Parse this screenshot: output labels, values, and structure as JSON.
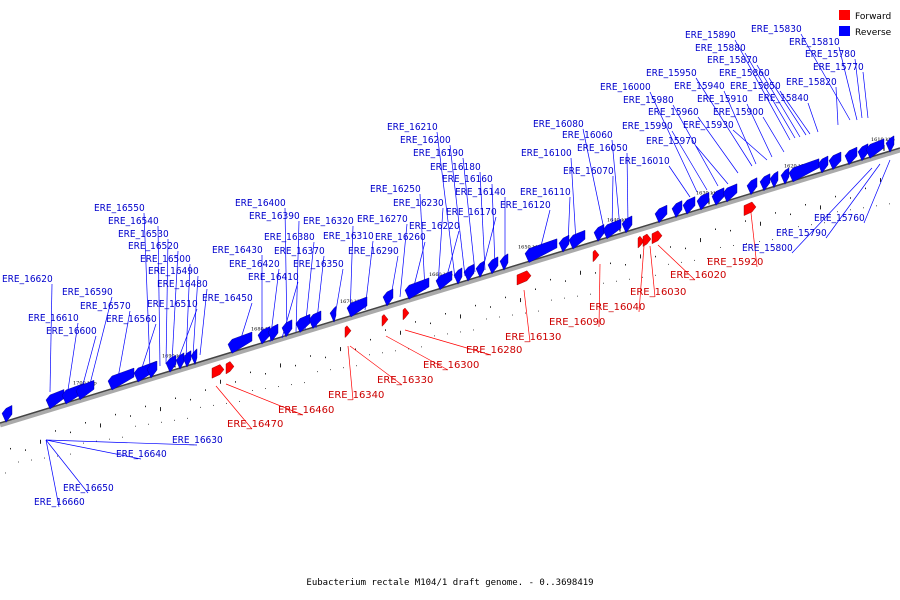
{
  "caption": "Eubacterium rectale M104/1 draft genome. - 0..3698419",
  "legend": [
    {
      "label": "Forward",
      "color": "#ff0000"
    },
    {
      "label": "Reverse",
      "color": "#0000ff"
    }
  ],
  "tick_labels": [
    "1610 kbp",
    "1620 kbp",
    "1630 kbp",
    "1640 kbp",
    "1650 kbp",
    "1660 kbp",
    "1670 kbp",
    "1680 kbp",
    "1690 kbp",
    "1700 kbp"
  ],
  "reverse_genes": [
    "ERE_15760",
    "ERE_15770",
    "ERE_15780",
    "ERE_15790",
    "ERE_15800",
    "ERE_15810",
    "ERE_15820",
    "ERE_15830",
    "ERE_15840",
    "ERE_15850",
    "ERE_15860",
    "ERE_15870",
    "ERE_15880",
    "ERE_15890",
    "ERE_15900",
    "ERE_15910",
    "ERE_15930",
    "ERE_15940",
    "ERE_15950",
    "ERE_15960",
    "ERE_15970",
    "ERE_15980",
    "ERE_15990",
    "ERE_16000",
    "ERE_16010",
    "ERE_16050",
    "ERE_16060",
    "ERE_16070",
    "ERE_16080",
    "ERE_16100",
    "ERE_16110",
    "ERE_16120",
    "ERE_16140",
    "ERE_16160",
    "ERE_16170",
    "ERE_16180",
    "ERE_16190",
    "ERE_16200",
    "ERE_16210",
    "ERE_16220",
    "ERE_16230",
    "ERE_16250",
    "ERE_16260",
    "ERE_16270",
    "ERE_16290",
    "ERE_16310",
    "ERE_16320",
    "ERE_16350",
    "ERE_16370",
    "ERE_16380",
    "ERE_16390",
    "ERE_16400",
    "ERE_16410",
    "ERE_16420",
    "ERE_16430",
    "ERE_16450",
    "ERE_16480",
    "ERE_16490",
    "ERE_16500",
    "ERE_16510",
    "ERE_16520",
    "ERE_16530",
    "ERE_16540",
    "ERE_16550",
    "ERE_16560",
    "ERE_16570",
    "ERE_16590",
    "ERE_16600",
    "ERE_16610",
    "ERE_16620",
    "ERE_16630",
    "ERE_16640",
    "ERE_16650",
    "ERE_16660"
  ],
  "forward_genes": [
    "ERE_15920",
    "ERE_16020",
    "ERE_16030",
    "ERE_16040",
    "ERE_16090",
    "ERE_16130",
    "ERE_16280",
    "ERE_16300",
    "ERE_16330",
    "ERE_16340",
    "ERE_16460",
    "ERE_16470"
  ]
}
